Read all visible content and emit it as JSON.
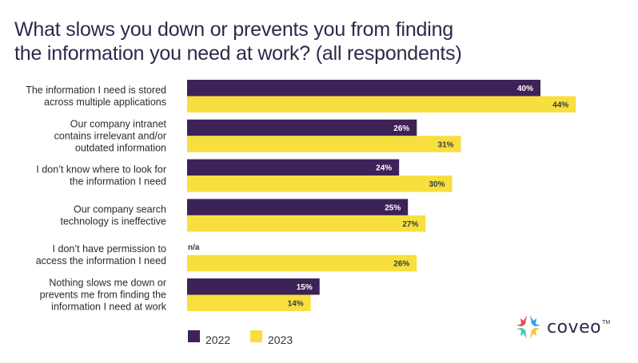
{
  "chart_data": {
    "type": "bar",
    "orientation": "horizontal",
    "title": "What slows you down or prevents you from finding the information you need at work? (all respondents)",
    "title_lines": [
      "What slows you down or prevents you from finding",
      "the information you need at work? (all respondents)"
    ],
    "xlabel": "",
    "ylabel": "",
    "xlim": [
      0,
      45
    ],
    "grid": false,
    "legend_position": "bottom-left",
    "value_suffix": "%",
    "categories": [
      [
        "The information I need is stored",
        "across multiple applications"
      ],
      [
        "Our company intranet",
        "contains irrelevant and/or",
        "outdated information"
      ],
      [
        "I don’t know where to look for",
        "the information I need"
      ],
      [
        "Our company search",
        "technology is ineffective"
      ],
      [
        "I don’t have permission to",
        "access the information I need"
      ],
      [
        "Nothing slows me down or",
        "prevents me from finding the",
        "information I need at work"
      ]
    ],
    "series": [
      {
        "name": "2022",
        "color": "#3d2258",
        "label_color": "#ffffff",
        "values": [
          40,
          26,
          24,
          25,
          null,
          15
        ],
        "missing_label": "n/a"
      },
      {
        "name": "2023",
        "color": "#f7df3f",
        "label_color": "#3a3a3a",
        "values": [
          44,
          31,
          30,
          27,
          26,
          14
        ]
      }
    ]
  },
  "legend": [
    {
      "label": "2022",
      "color": "#3d2258"
    },
    {
      "label": "2023",
      "color": "#f7df3f"
    }
  ],
  "logo": {
    "text": "coveo",
    "tm": "TM"
  }
}
